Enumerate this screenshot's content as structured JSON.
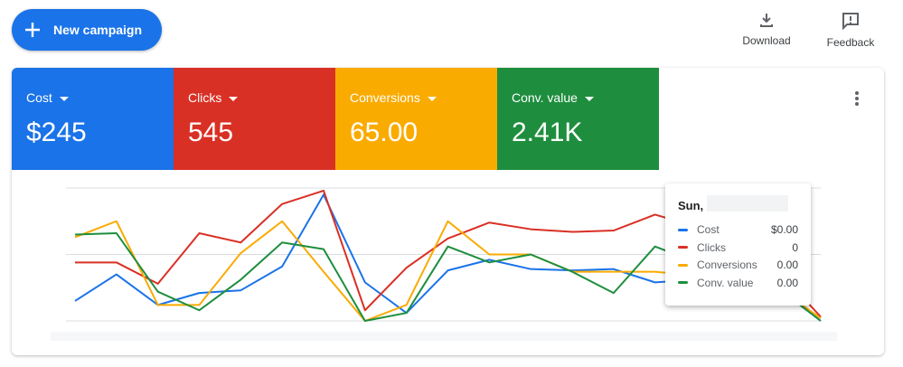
{
  "toolbar": {
    "new_campaign": "New campaign",
    "download": "Download",
    "feedback": "Feedback"
  },
  "metrics": [
    {
      "label": "Cost",
      "value": "$245",
      "color": "#1a73e8"
    },
    {
      "label": "Clicks",
      "value": "545",
      "color": "#d93025"
    },
    {
      "label": "Conversions",
      "value": "65.00",
      "color": "#f9ab00"
    },
    {
      "label": "Conv. value",
      "value": "2.41K",
      "color": "#1e8e3e"
    }
  ],
  "tooltip": {
    "title": "Sun,",
    "values": [
      "$0.00",
      "0",
      "0.00",
      "0.00"
    ]
  },
  "chart_data": {
    "type": "line",
    "categories": [
      null,
      null,
      null,
      null,
      null,
      null,
      null,
      null,
      null,
      null,
      null,
      null,
      null,
      null,
      null,
      null,
      null,
      null,
      null
    ],
    "ylim": [
      0,
      100
    ],
    "yticks": [
      0,
      50,
      100
    ],
    "grid": true,
    "series": [
      {
        "name": "Cost",
        "color": "#1a73e8",
        "values": [
          15,
          35,
          12,
          21,
          23,
          41,
          95,
          29,
          6,
          38,
          46,
          39,
          38,
          39,
          29,
          31,
          31,
          24,
          0
        ]
      },
      {
        "name": "Clicks",
        "color": "#d93025",
        "values": [
          44,
          44,
          28,
          66,
          59,
          88,
          98,
          8,
          40,
          62,
          74,
          69,
          67,
          68,
          80,
          71,
          71,
          37,
          3
        ]
      },
      {
        "name": "Conversions",
        "color": "#f9ab00",
        "values": [
          63,
          75,
          12,
          12,
          51,
          75,
          37,
          0,
          12,
          75,
          50,
          50,
          37,
          37,
          37,
          34,
          34,
          24,
          2
        ]
      },
      {
        "name": "Conv. value",
        "color": "#1e8e3e",
        "values": [
          65,
          66,
          22,
          8,
          31,
          59,
          54,
          0,
          6,
          56,
          44,
          50,
          37,
          21,
          56,
          44,
          44,
          24,
          0
        ]
      }
    ]
  }
}
